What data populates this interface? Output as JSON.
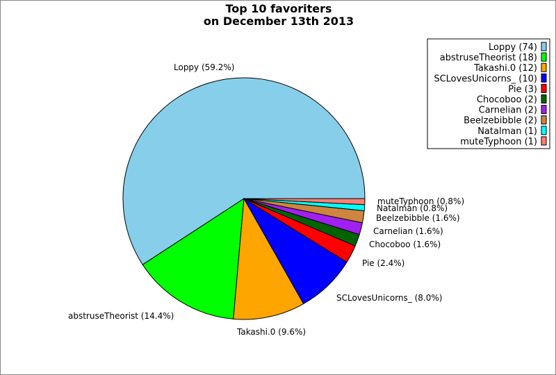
{
  "chart_data": {
    "type": "pie",
    "title": [
      "Top 10 favoriters",
      "on December 13th 2013"
    ],
    "start_angle_deg": 0,
    "direction": "counterclockwise",
    "legend_position": "top-right",
    "slices": [
      {
        "name": "Loppy",
        "value": 74,
        "percent": "59.2%",
        "color": "#87ceeb"
      },
      {
        "name": "abstruseTheorist",
        "value": 18,
        "percent": "14.4%",
        "color": "#00ff00"
      },
      {
        "name": "Takashi.0",
        "value": 12,
        "percent": "9.6%",
        "color": "#ffa500"
      },
      {
        "name": "SCLovesUnicorns_",
        "value": 10,
        "percent": "8.0%",
        "color": "#0000ff"
      },
      {
        "name": "Pie",
        "value": 3,
        "percent": "2.4%",
        "color": "#ff0000"
      },
      {
        "name": "Chocoboo",
        "value": 2,
        "percent": "1.6%",
        "color": "#006400"
      },
      {
        "name": "Carnelian",
        "value": 2,
        "percent": "1.6%",
        "color": "#a020f0"
      },
      {
        "name": "Beelzebibble",
        "value": 2,
        "percent": "1.6%",
        "color": "#cd853f"
      },
      {
        "name": "Natalman",
        "value": 1,
        "percent": "0.8%",
        "color": "#00ffff"
      },
      {
        "name": "muteTyphoon",
        "value": 1,
        "percent": "0.8%",
        "color": "#fa8072"
      }
    ]
  }
}
